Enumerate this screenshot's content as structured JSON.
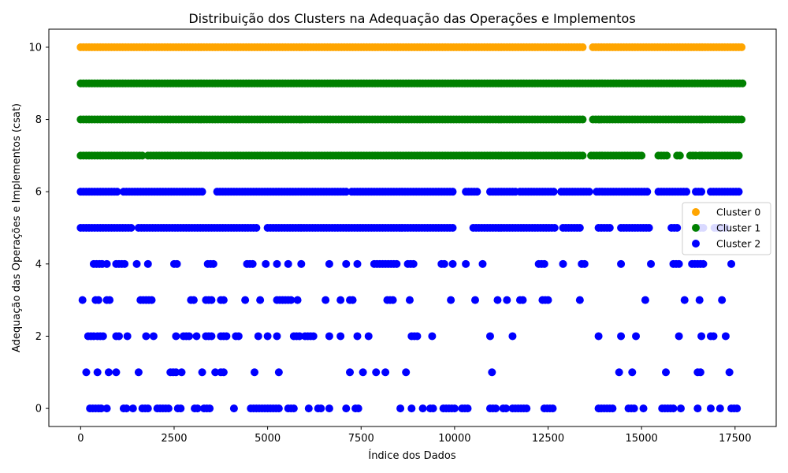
{
  "chart_data": {
    "type": "scatter",
    "title": "Distribuição dos Clusters na Adequação das Operações e Implementos",
    "xlabel": "Índice dos Dados",
    "ylabel": "Adequação das Operações e Implementos (csat)",
    "xlim": [
      -850,
      18600
    ],
    "ylim": [
      -0.5,
      10.5
    ],
    "x_ticks": [
      0,
      2500,
      5000,
      7500,
      10000,
      12500,
      15000,
      17500
    ],
    "y_ticks": [
      0,
      2,
      4,
      6,
      8,
      10
    ],
    "grid": false,
    "legend_position": "center-right",
    "series": [
      {
        "name": "Cluster 0",
        "color": "#FFA500",
        "points": [
          {
            "y": 10,
            "segments": [
              [
                0,
                13450
              ],
              [
                13700,
                17700
              ]
            ]
          }
        ]
      },
      {
        "name": "Cluster 1",
        "color": "#008000",
        "points": [
          {
            "y": 9,
            "segments": [
              [
                0,
                17700
              ]
            ]
          },
          {
            "y": 8,
            "segments": [
              [
                0,
                13450
              ],
              [
                13700,
                17700
              ]
            ]
          },
          {
            "y": 7,
            "segments": [
              [
                0,
                1700
              ],
              [
                1800,
                13450
              ],
              [
                13650,
                15050
              ],
              [
                15450,
                15700
              ],
              [
                15950,
                16050
              ],
              [
                16300,
                16450
              ],
              [
                16550,
                17650
              ]
            ]
          }
        ]
      },
      {
        "name": "Cluster 2",
        "color": "#0000FF",
        "points": [
          {
            "y": 6,
            "segments": [
              [
                0,
                1000
              ],
              [
                1150,
                3300
              ],
              [
                3650,
                7100
              ],
              [
                7250,
                10000
              ],
              [
                10300,
                10650
              ],
              [
                10950,
                11650
              ],
              [
                11750,
                12700
              ],
              [
                12850,
                13600
              ],
              [
                13800,
                15150
              ],
              [
                15450,
                16250
              ],
              [
                16450,
                16600
              ],
              [
                16850,
                17600
              ]
            ]
          },
          {
            "y": 5,
            "segments": [
              [
                0,
                1350
              ],
              [
                1550,
                4700
              ],
              [
                5000,
                10000
              ],
              [
                10500,
                12700
              ],
              [
                12900,
                13400
              ],
              [
                13850,
                14200
              ],
              [
                14450,
                15200
              ],
              [
                15800,
                16000
              ],
              [
                16500,
                16700
              ],
              [
                16950,
                17300
              ]
            ]
          },
          {
            "y": 4,
            "segments": [
              [
                350,
                600
              ],
              [
                700,
                700
              ],
              [
                950,
                1200
              ],
              [
                1500,
                1500
              ],
              [
                1800,
                1800
              ],
              [
                2500,
                2600
              ],
              [
                3400,
                3600
              ],
              [
                4450,
                4650
              ],
              [
                4950,
                4950
              ],
              [
                5250,
                5250
              ],
              [
                5550,
                5550
              ],
              [
                5900,
                5900
              ],
              [
                6650,
                6650
              ],
              [
                7100,
                7100
              ],
              [
                7400,
                7400
              ],
              [
                7850,
                8450
              ],
              [
                8750,
                8950
              ],
              [
                9650,
                9750
              ],
              [
                9950,
                9950
              ],
              [
                10300,
                10300
              ],
              [
                10750,
                10750
              ],
              [
                12250,
                12450
              ],
              [
                12900,
                12900
              ],
              [
                13400,
                13500
              ],
              [
                14450,
                14450
              ],
              [
                15250,
                15250
              ],
              [
                15850,
                16050
              ],
              [
                16350,
                16700
              ],
              [
                17400,
                17400
              ]
            ]
          },
          {
            "y": 3,
            "segments": [
              [
                50,
                50
              ],
              [
                400,
                500
              ],
              [
                700,
                800
              ],
              [
                1600,
                1950
              ],
              [
                2950,
                3050
              ],
              [
                3350,
                3500
              ],
              [
                3750,
                3850
              ],
              [
                4400,
                4400
              ],
              [
                4800,
                4800
              ],
              [
                5250,
                5650
              ],
              [
                5800,
                5850
              ],
              [
                6550,
                6550
              ],
              [
                6950,
                6950
              ],
              [
                7200,
                7300
              ],
              [
                8200,
                8350
              ],
              [
                8800,
                8800
              ],
              [
                9900,
                9900
              ],
              [
                10550,
                10550
              ],
              [
                11150,
                11150
              ],
              [
                11400,
                11400
              ],
              [
                11750,
                11850
              ],
              [
                12350,
                12500
              ],
              [
                13350,
                13350
              ],
              [
                15100,
                15100
              ],
              [
                16150,
                16150
              ],
              [
                16550,
                16550
              ],
              [
                17150,
                17150
              ]
            ]
          },
          {
            "y": 2,
            "segments": [
              [
                200,
                350
              ],
              [
                450,
                650
              ],
              [
                950,
                1050
              ],
              [
                1250,
                1250
              ],
              [
                1750,
                1750
              ],
              [
                1950,
                2000
              ],
              [
                2550,
                2550
              ],
              [
                2750,
                2950
              ],
              [
                3100,
                3150
              ],
              [
                3350,
                3550
              ],
              [
                3750,
                3950
              ],
              [
                4150,
                4250
              ],
              [
                4750,
                4750
              ],
              [
                5000,
                5000
              ],
              [
                5250,
                5250
              ],
              [
                5700,
                5850
              ],
              [
                6000,
                6250
              ],
              [
                6650,
                6650
              ],
              [
                6950,
                6950
              ],
              [
                7400,
                7400
              ],
              [
                7700,
                7700
              ],
              [
                8850,
                9000
              ],
              [
                9400,
                9400
              ],
              [
                10950,
                11000
              ],
              [
                11550,
                11550
              ],
              [
                13850,
                13850
              ],
              [
                14450,
                14450
              ],
              [
                14850,
                14850
              ],
              [
                16000,
                16000
              ],
              [
                16600,
                16600
              ],
              [
                16850,
                16950
              ],
              [
                17250,
                17250
              ]
            ]
          },
          {
            "y": 1,
            "segments": [
              [
                150,
                150
              ],
              [
                450,
                450
              ],
              [
                750,
                750
              ],
              [
                950,
                950
              ],
              [
                1550,
                1550
              ],
              [
                2400,
                2550
              ],
              [
                2700,
                2700
              ],
              [
                3250,
                3250
              ],
              [
                3600,
                3600
              ],
              [
                3750,
                3850
              ],
              [
                4650,
                4650
              ],
              [
                5300,
                5300
              ],
              [
                7200,
                7200
              ],
              [
                7550,
                7550
              ],
              [
                7900,
                7900
              ],
              [
                8150,
                8150
              ],
              [
                8700,
                8700
              ],
              [
                11000,
                11000
              ],
              [
                14400,
                14400
              ],
              [
                14750,
                14750
              ],
              [
                15650,
                15650
              ],
              [
                16500,
                16600
              ],
              [
                17350,
                17350
              ]
            ]
          },
          {
            "y": 0,
            "segments": [
              [
                250,
                550
              ],
              [
                700,
                700
              ],
              [
                1150,
                1250
              ],
              [
                1400,
                1400
              ],
              [
                1650,
                1800
              ],
              [
                2050,
                2400
              ],
              [
                2600,
                2700
              ],
              [
                3050,
                3150
              ],
              [
                3300,
                3450
              ],
              [
                4100,
                4150
              ],
              [
                4550,
                5300
              ],
              [
                5550,
                5750
              ],
              [
                6100,
                6100
              ],
              [
                6350,
                6450
              ],
              [
                6650,
                6650
              ],
              [
                7100,
                7150
              ],
              [
                7350,
                7450
              ],
              [
                8550,
                8550
              ],
              [
                8850,
                8850
              ],
              [
                9150,
                9150
              ],
              [
                9350,
                9450
              ],
              [
                9700,
                10050
              ],
              [
                10200,
                10400
              ],
              [
                10950,
                11100
              ],
              [
                11300,
                11400
              ],
              [
                11550,
                11950
              ],
              [
                12400,
                12650
              ],
              [
                13850,
                14250
              ],
              [
                14650,
                14800
              ],
              [
                15050,
                15050
              ],
              [
                15550,
                15900
              ],
              [
                16050,
                16100
              ],
              [
                16500,
                16550
              ],
              [
                16850,
                16900
              ],
              [
                17100,
                17100
              ],
              [
                17400,
                17600
              ]
            ]
          }
        ]
      }
    ]
  }
}
